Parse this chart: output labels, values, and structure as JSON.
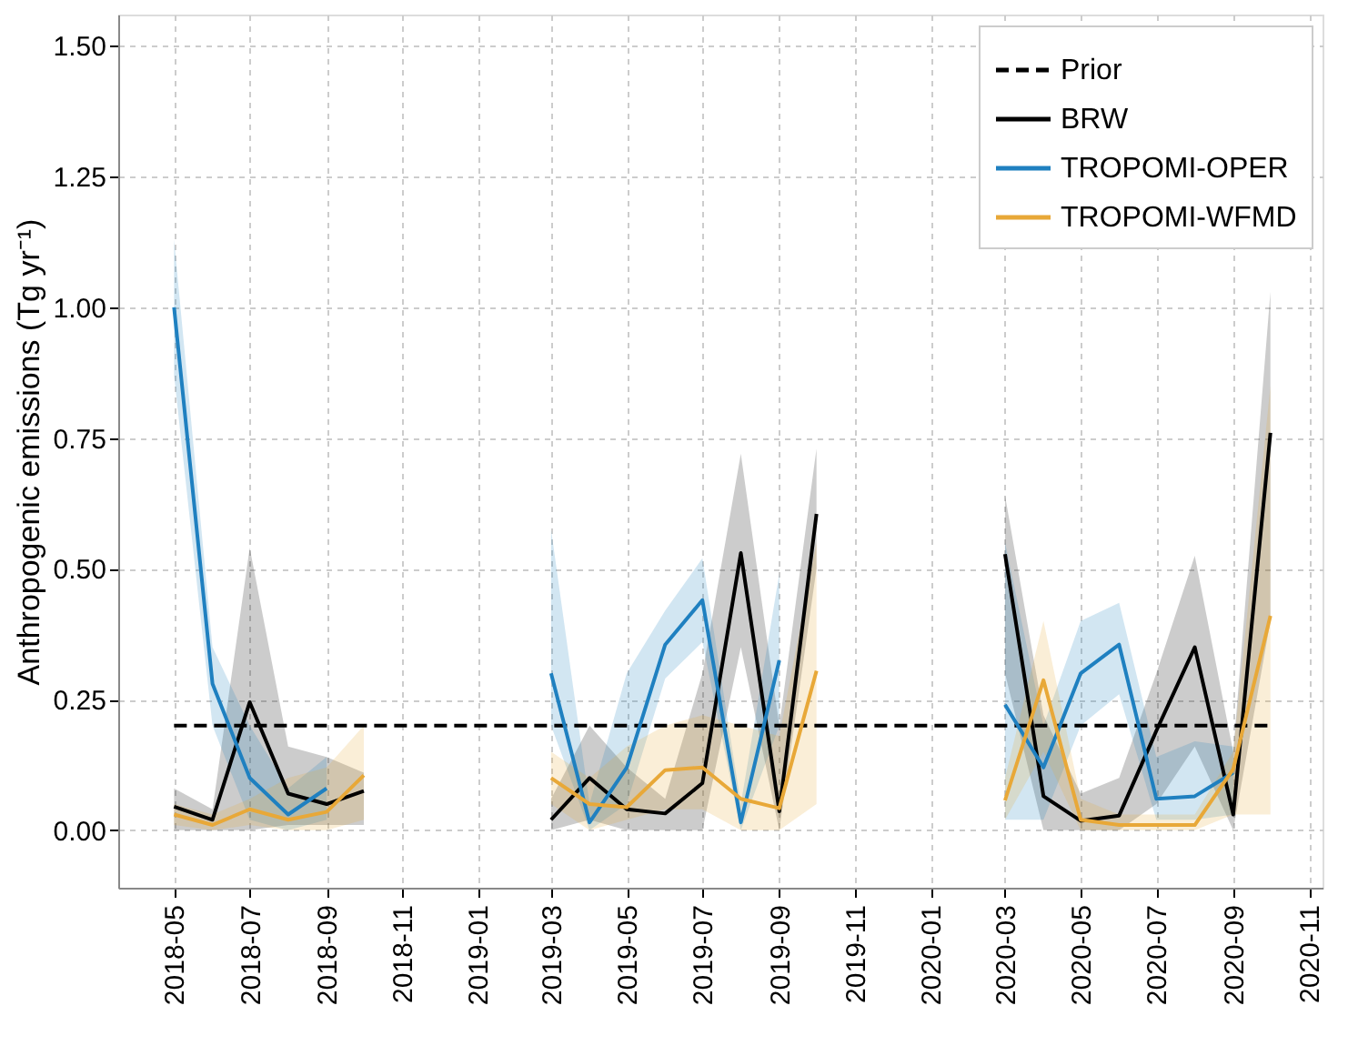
{
  "chart_data": {
    "type": "line",
    "ylabel": "Anthropogenic emissions (Tg yr⁻¹)",
    "x": [
      "2018-05",
      "2018-06",
      "2018-07",
      "2018-08",
      "2018-09",
      "2018-10",
      "2018-11",
      "2018-12",
      "2019-01",
      "2019-02",
      "2019-03",
      "2019-04",
      "2019-05",
      "2019-06",
      "2019-07",
      "2019-08",
      "2019-09",
      "2019-10",
      "2019-11",
      "2019-12",
      "2020-01",
      "2020-02",
      "2020-03",
      "2020-04",
      "2020-05",
      "2020-06",
      "2020-07",
      "2020-08",
      "2020-09",
      "2020-10"
    ],
    "series": [
      {
        "name": "Prior",
        "color": "#000000",
        "line_style": "dashed",
        "x": [
          "2018-05",
          "2020-10"
        ],
        "values": [
          0.2,
          0.2
        ]
      },
      {
        "name": "BRW",
        "color": "#000000",
        "line_style": "solid",
        "values": [
          0.045,
          0.02,
          0.245,
          0.07,
          0.05,
          0.075,
          null,
          null,
          null,
          null,
          0.02,
          0.1,
          0.04,
          0.032,
          0.09,
          0.53,
          0.036,
          0.605,
          null,
          null,
          null,
          null,
          0.528,
          0.065,
          0.018,
          0.028,
          0.19,
          0.35,
          0.03,
          0.76
        ],
        "lower": [
          0.0,
          0.0,
          0.0,
          0.01,
          0.01,
          0.01,
          null,
          null,
          null,
          null,
          0.0,
          0.02,
          0.0,
          0.0,
          0.0,
          0.35,
          0.0,
          0.5,
          null,
          null,
          null,
          null,
          0.3,
          0.0,
          0.0,
          0.0,
          0.05,
          0.16,
          0.0,
          0.4
        ],
        "upper": [
          0.08,
          0.04,
          0.54,
          0.16,
          0.14,
          0.11,
          null,
          null,
          null,
          null,
          0.06,
          0.2,
          0.12,
          0.06,
          0.3,
          0.72,
          0.2,
          0.73,
          null,
          null,
          null,
          null,
          0.64,
          0.22,
          0.07,
          0.1,
          0.3,
          0.525,
          0.15,
          1.03
        ]
      },
      {
        "name": "TROPOMI-OPER",
        "color": "#1f80c0",
        "line_style": "solid",
        "values": [
          1.0,
          0.28,
          0.1,
          0.03,
          0.08,
          null,
          null,
          null,
          null,
          null,
          0.3,
          0.015,
          0.12,
          0.355,
          0.44,
          0.015,
          0.325,
          null,
          null,
          null,
          null,
          null,
          0.24,
          0.12,
          0.3,
          0.355,
          0.06,
          0.065,
          0.11,
          null
        ],
        "lower": [
          0.87,
          0.2,
          0.02,
          0.0,
          0.02,
          null,
          null,
          null,
          null,
          null,
          0.2,
          0.0,
          0.05,
          0.29,
          0.36,
          0.0,
          0.2,
          null,
          null,
          null,
          null,
          null,
          0.02,
          0.02,
          0.2,
          0.26,
          0.02,
          0.02,
          0.03,
          null
        ],
        "upper": [
          1.13,
          0.35,
          0.2,
          0.08,
          0.14,
          null,
          null,
          null,
          null,
          null,
          0.575,
          0.05,
          0.3,
          0.42,
          0.52,
          0.05,
          0.49,
          null,
          null,
          null,
          null,
          null,
          0.55,
          0.2,
          0.4,
          0.435,
          0.14,
          0.17,
          0.16,
          null
        ]
      },
      {
        "name": "TROPOMI-WFMD",
        "color": "#e8a838",
        "line_style": "solid",
        "values": [
          0.03,
          0.01,
          0.04,
          0.02,
          0.035,
          0.105,
          null,
          null,
          null,
          null,
          0.1,
          0.05,
          0.044,
          0.115,
          0.12,
          0.06,
          0.042,
          0.305,
          null,
          null,
          null,
          null,
          0.057,
          0.287,
          0.02,
          0.01,
          0.01,
          0.01,
          0.117,
          0.41
        ],
        "lower": [
          0.01,
          0.0,
          0.01,
          0.0,
          0.0,
          0.02,
          null,
          null,
          null,
          null,
          0.05,
          0.0,
          0.02,
          0.04,
          0.04,
          0.0,
          0.0,
          0.05,
          null,
          null,
          null,
          null,
          0.02,
          0.15,
          0.0,
          0.0,
          0.0,
          0.0,
          0.03,
          0.03
        ],
        "upper": [
          0.05,
          0.03,
          0.06,
          0.1,
          0.12,
          0.2,
          null,
          null,
          null,
          null,
          0.15,
          0.1,
          0.16,
          0.2,
          0.22,
          0.2,
          0.18,
          0.55,
          null,
          null,
          null,
          null,
          0.1,
          0.4,
          0.06,
          0.03,
          0.03,
          0.03,
          0.15,
          0.85
        ]
      }
    ],
    "xlim": [
      "2018-03-17",
      "2020-11-12"
    ],
    "xticks": [
      "2018-05",
      "2018-07",
      "2018-09",
      "2018-11",
      "2019-01",
      "2019-03",
      "2019-05",
      "2019-07",
      "2019-09",
      "2019-11",
      "2020-01",
      "2020-03",
      "2020-05",
      "2020-07",
      "2020-09",
      "2020-11"
    ],
    "ylim": [
      -0.11,
      1.56
    ],
    "yticks": [
      {
        "value": 0,
        "label": "0.00"
      },
      {
        "value": 0.25,
        "label": "0.25"
      },
      {
        "value": 0.5,
        "label": "0.50"
      },
      {
        "value": 0.75,
        "label": "0.75"
      },
      {
        "value": 1.0,
        "label": "1.00"
      },
      {
        "value": 1.25,
        "label": "1.25"
      },
      {
        "value": 1.5,
        "label": "1.50"
      }
    ],
    "grid": true,
    "legend": "top right",
    "marker": "none"
  }
}
